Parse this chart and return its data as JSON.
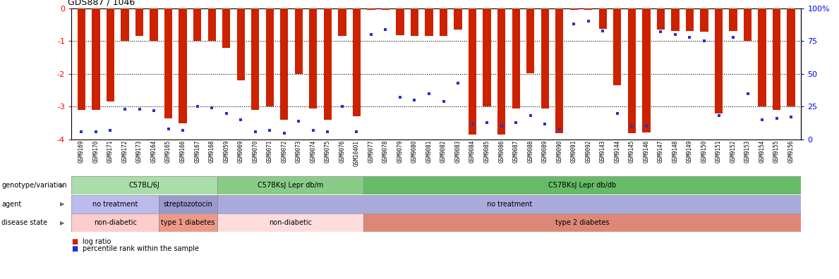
{
  "title": "GDS887 / 1046",
  "samples": [
    "GSM9169",
    "GSM9170",
    "GSM9171",
    "GSM9172",
    "GSM9173",
    "GSM9164",
    "GSM9165",
    "GSM9166",
    "GSM9167",
    "GSM9168",
    "GSM9059",
    "GSM9069",
    "GSM9070",
    "GSM9071",
    "GSM9072",
    "GSM9073",
    "GSM9074",
    "GSM9075",
    "GSM9076",
    "GSM10401",
    "GSM9077",
    "GSM9078",
    "GSM9079",
    "GSM9080",
    "GSM9081",
    "GSM9082",
    "GSM9083",
    "GSM9084",
    "GSM9085",
    "GSM9086",
    "GSM9087",
    "GSM9088",
    "GSM9089",
    "GSM9090",
    "GSM9091",
    "GSM9092",
    "GSM9143",
    "GSM9144",
    "GSM9145",
    "GSM9146",
    "GSM9147",
    "GSM9148",
    "GSM9149",
    "GSM9150",
    "GSM9151",
    "GSM9152",
    "GSM9153",
    "GSM9154",
    "GSM9155",
    "GSM9156"
  ],
  "log_ratio": [
    -3.1,
    -3.1,
    -2.85,
    -1.0,
    -0.85,
    -1.0,
    -3.35,
    -3.5,
    -1.0,
    -1.0,
    -1.2,
    -2.2,
    -3.1,
    -3.0,
    -3.4,
    -2.0,
    -3.05,
    -3.4,
    -0.85,
    -3.3,
    -0.05,
    -0.05,
    -0.82,
    -0.85,
    -0.84,
    -0.85,
    -0.65,
    -3.85,
    -3.0,
    -3.85,
    -3.05,
    -1.98,
    -3.05,
    -3.8,
    -0.05,
    -0.05,
    -0.62,
    -2.35,
    -3.8,
    -3.78,
    -0.65,
    -0.68,
    -0.7,
    -0.72,
    -3.2,
    -0.68,
    -1.0,
    -3.0,
    -3.1,
    -3.0
  ],
  "percentile": [
    6,
    6,
    7,
    23,
    23,
    22,
    8,
    7,
    25,
    24,
    20,
    15,
    6,
    7,
    5,
    14,
    7,
    6,
    25,
    6,
    80,
    84,
    32,
    30,
    35,
    29,
    43,
    12,
    13,
    10,
    13,
    18,
    12,
    8,
    88,
    90,
    83,
    20,
    10,
    10,
    82,
    80,
    78,
    75,
    18,
    78,
    35,
    15,
    16,
    17
  ],
  "bar_color": "#cc2200",
  "dot_color": "#2233cc",
  "ylim_left": [
    -4.0,
    0.0
  ],
  "yticks_left": [
    0,
    -1,
    -2,
    -3,
    -4
  ],
  "yticks_right": [
    0,
    25,
    50,
    75,
    100
  ],
  "ytick_labels_right": [
    "0",
    "25",
    "50",
    "75",
    "100%"
  ],
  "groups": {
    "genotype": [
      {
        "label": "C57BL/6J",
        "start": 0,
        "end": 10,
        "color": "#aaddaa"
      },
      {
        "label": "C57BKsJ Lepr db/m",
        "start": 10,
        "end": 20,
        "color": "#88cc88"
      },
      {
        "label": "C57BKsJ Lepr db/db",
        "start": 20,
        "end": 50,
        "color": "#66bb66"
      }
    ],
    "agent": [
      {
        "label": "no treatment",
        "start": 0,
        "end": 6,
        "color": "#bbbbee"
      },
      {
        "label": "streptozotocin",
        "start": 6,
        "end": 10,
        "color": "#9999cc"
      },
      {
        "label": "no treatment",
        "start": 10,
        "end": 50,
        "color": "#aaaadd"
      }
    ],
    "disease": [
      {
        "label": "non-diabetic",
        "start": 0,
        "end": 6,
        "color": "#ffcccc"
      },
      {
        "label": "type 1 diabetes",
        "start": 6,
        "end": 10,
        "color": "#ee9988"
      },
      {
        "label": "non-diabetic",
        "start": 10,
        "end": 20,
        "color": "#ffdddd"
      },
      {
        "label": "type 2 diabetes",
        "start": 20,
        "end": 50,
        "color": "#dd8877"
      }
    ]
  },
  "row_labels": [
    "genotype/variation",
    "agent",
    "disease state"
  ],
  "legend": [
    "log ratio",
    "percentile rank within the sample"
  ],
  "legend_colors": [
    "#cc2200",
    "#2233cc"
  ]
}
